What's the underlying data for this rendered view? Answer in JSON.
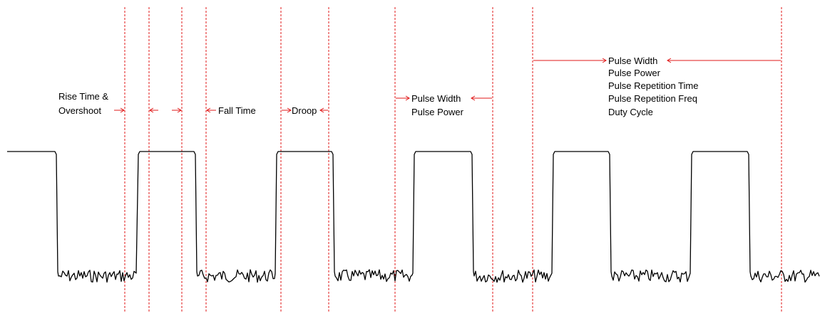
{
  "colors": {
    "signal": "#000000",
    "marker": "#e01818",
    "background": "#ffffff"
  },
  "labels": {
    "rise_time_line1": "Rise Time &",
    "rise_time_line2": "Overshoot",
    "fall_time": "Fall Time",
    "droop": "Droop",
    "group1_line1": "Pulse Width",
    "group1_line2": "Pulse Power",
    "group2_line1": "Pulse Width",
    "group2_line2": "Pulse Power",
    "group2_line3": "Pulse Repetition Time",
    "group2_line4": "Pulse Repetition Freq",
    "group2_line5": "Duty Cycle"
  }
}
